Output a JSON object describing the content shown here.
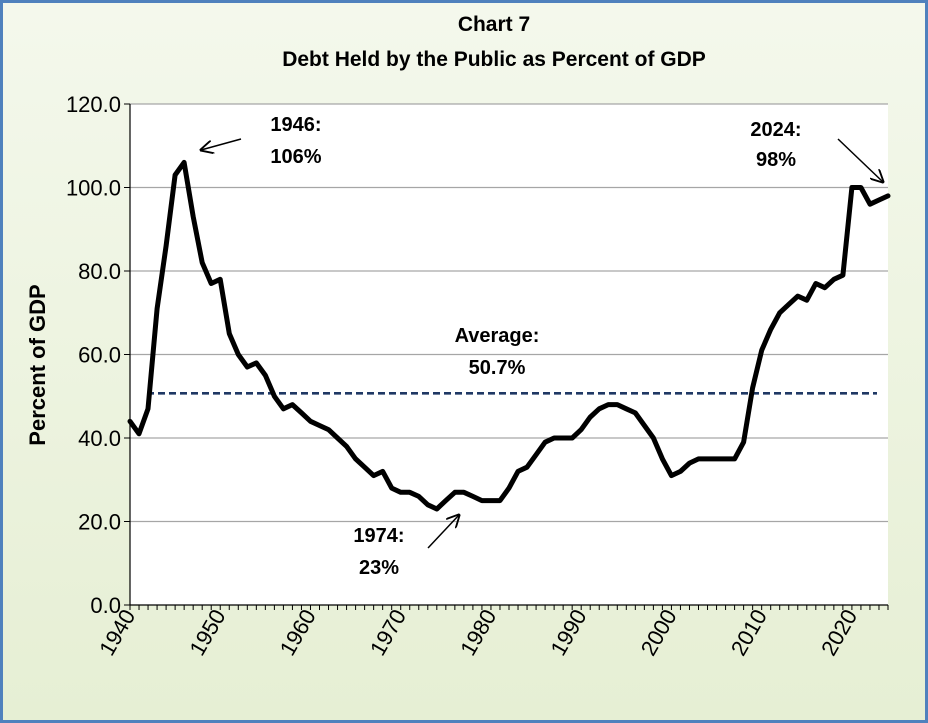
{
  "chart_data": {
    "type": "line",
    "title": "Chart 7",
    "subtitle": "Debt Held by the Public as Percent of GDP",
    "xlabel": "",
    "ylabel": "Percent of GDP",
    "xlim": [
      1940,
      2024
    ],
    "ylim": [
      0,
      120
    ],
    "y_ticks": [
      "0.0",
      "20.0",
      "40.0",
      "60.0",
      "80.0",
      "100.0",
      "120.0"
    ],
    "x_ticks": [
      "1940",
      "1950",
      "1960",
      "1970",
      "1980",
      "1990",
      "2000",
      "2010",
      "2020"
    ],
    "grid": true,
    "series": [
      {
        "name": "",
        "color": "#000000",
        "x": [
          1940,
          1941,
          1942,
          1943,
          1944,
          1945,
          1946,
          1947,
          1948,
          1949,
          1950,
          1951,
          1952,
          1953,
          1954,
          1955,
          1956,
          1957,
          1958,
          1959,
          1960,
          1961,
          1962,
          1963,
          1964,
          1965,
          1966,
          1967,
          1968,
          1969,
          1970,
          1971,
          1972,
          1973,
          1974,
          1975,
          1976,
          1977,
          1978,
          1979,
          1980,
          1981,
          1982,
          1983,
          1984,
          1985,
          1986,
          1987,
          1988,
          1989,
          1990,
          1991,
          1992,
          1993,
          1994,
          1995,
          1996,
          1997,
          1998,
          1999,
          2000,
          2001,
          2002,
          2003,
          2004,
          2005,
          2006,
          2007,
          2008,
          2009,
          2010,
          2011,
          2012,
          2013,
          2014,
          2015,
          2016,
          2017,
          2018,
          2019,
          2020,
          2021,
          2022,
          2023,
          2024
        ],
        "y": [
          44,
          41,
          47,
          71,
          86,
          103,
          106,
          93,
          82,
          77,
          78,
          65,
          60,
          57,
          58,
          55,
          50,
          47,
          48,
          46,
          44,
          43,
          42,
          40,
          38,
          35,
          33,
          31,
          32,
          28,
          27,
          27,
          26,
          24,
          23,
          25,
          27,
          27,
          26,
          25,
          25,
          25,
          28,
          32,
          33,
          36,
          39,
          40,
          40,
          40,
          42,
          45,
          47,
          48,
          48,
          47,
          46,
          43,
          40,
          35,
          31,
          32,
          34,
          35,
          35,
          35,
          35,
          35,
          39,
          52,
          61,
          66,
          70,
          72,
          74,
          73,
          77,
          76,
          78,
          79,
          100,
          100,
          96,
          97,
          98
        ]
      }
    ],
    "reference_lines": [
      {
        "label": "Average:",
        "value_label": "50.7%",
        "y": 50.7,
        "style": "dashed",
        "color": "#1f3864"
      }
    ],
    "annotations": [
      {
        "line1": "1946:",
        "line2": "106%",
        "x": 1946,
        "y": 106
      },
      {
        "line1": "1974:",
        "line2": "23%",
        "x": 1974,
        "y": 23
      },
      {
        "line1": "2024:",
        "line2": "98%",
        "x": 2024,
        "y": 98
      }
    ]
  }
}
